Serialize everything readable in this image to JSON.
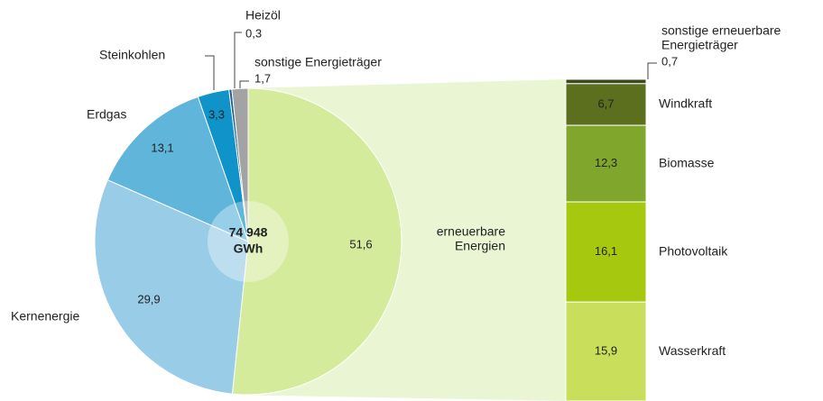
{
  "chart_data": [
    {
      "type": "pie",
      "categories": [
        [
          "erneuerbare",
          "Energien"
        ],
        "Kernenergie",
        "Erdgas",
        "Steinkohlen",
        "Heizöl",
        "sonstige Energieträger"
      ],
      "values": [
        51.6,
        29.9,
        13.1,
        3.3,
        0.3,
        1.7
      ],
      "value_labels": [
        "51,6",
        "29,9",
        "13,1",
        "3,3",
        "0,3",
        "1,7"
      ],
      "colors": [
        "#d4eb9c",
        "#98cce7",
        "#5fb5da",
        "#0f93c8",
        "#1d5f8e",
        "#a3a3a3"
      ],
      "center_label": [
        "74 948",
        "GWh"
      ]
    },
    {
      "type": "stacked-bar",
      "categories": [
        [
          "sonstige erneuerbare",
          "Energieträger"
        ],
        "Windkraft",
        "Biomasse",
        "Photovoltaik",
        "Wasserkraft"
      ],
      "values": [
        0.7,
        6.7,
        12.3,
        16.1,
        15.9
      ],
      "value_labels": [
        "0,7",
        "6,7",
        "12,3",
        "16,1",
        "15,9"
      ],
      "colors": [
        "#3b4a1c",
        "#5b6f1f",
        "#80a62b",
        "#a6c910",
        "#c9df5b"
      ]
    }
  ]
}
